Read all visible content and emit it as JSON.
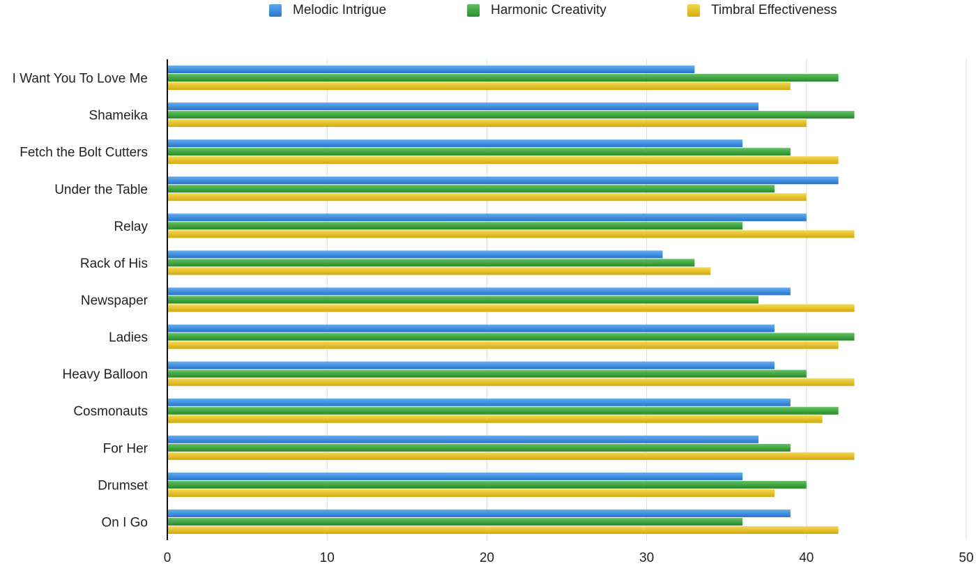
{
  "chart_data": {
    "type": "bar",
    "orientation": "horizontal",
    "title": "",
    "xlabel": "",
    "ylabel": "",
    "xlim": [
      0,
      50
    ],
    "x_ticks": [
      "0",
      "10",
      "20",
      "30",
      "40",
      "50"
    ],
    "grid": true,
    "legend_position": "top-center",
    "categories": [
      "I Want You To Love Me",
      "Shameika",
      "Fetch the Bolt Cutters",
      "Under the Table",
      "Relay",
      "Rack of His",
      "Newspaper",
      "Ladies",
      "Heavy Balloon",
      "Cosmonauts",
      "For Her",
      "Drumset",
      "On I Go"
    ],
    "series": [
      {
        "name": "Melodic Intrigue",
        "color": "#3a8ee0",
        "values": [
          33,
          37,
          36,
          42,
          40,
          31,
          39,
          38,
          38,
          39,
          37,
          36,
          39
        ]
      },
      {
        "name": "Harmonic Creativity",
        "color": "#3aa53a",
        "values": [
          42,
          43,
          39,
          38,
          36,
          33,
          37,
          43,
          40,
          42,
          39,
          40,
          36
        ]
      },
      {
        "name": "Timbral Effectiveness",
        "color": "#e5c223",
        "values": [
          39,
          40,
          42,
          40,
          43,
          34,
          43,
          42,
          43,
          41,
          43,
          38,
          42
        ]
      }
    ]
  }
}
